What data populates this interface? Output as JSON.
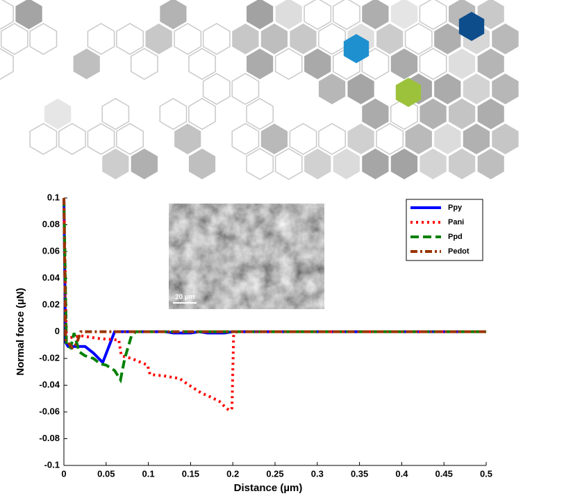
{
  "chart_data": {
    "type": "line",
    "xlabel": "Distance (µm)",
    "ylabel": "Normal force (µN)",
    "inset_scale_label": "20 µm",
    "xlim": [
      0,
      0.5
    ],
    "ylim": [
      -0.1,
      0.1
    ],
    "xticks": [
      0,
      0.05,
      0.1,
      0.15,
      0.2,
      0.25,
      0.3,
      0.35,
      0.4,
      0.45,
      0.5
    ],
    "yticks": [
      0.1,
      0.08,
      0.06,
      0.04,
      0.02,
      0,
      -0.02,
      -0.04,
      -0.06,
      -0.08,
      -0.1
    ],
    "legend": "upper right",
    "series": [
      {
        "name": "Ppy",
        "color": "#0000ff",
        "linestyle": "solid",
        "x": [
          0,
          0.002,
          0.005,
          0.025,
          0.035,
          0.046,
          0.06,
          0.12,
          0.13,
          0.15,
          0.16,
          0.17,
          0.19,
          0.2,
          0.5
        ],
        "values": [
          0.1,
          -0.008,
          -0.011,
          -0.011,
          -0.016,
          -0.023,
          0,
          0,
          -0.001,
          -0.001,
          0,
          -0.001,
          -0.001,
          0,
          0
        ]
      },
      {
        "name": "Pani",
        "color": "#ff0000",
        "linestyle": "dotted",
        "x": [
          0,
          0.003,
          0.02,
          0.04,
          0.06,
          0.065,
          0.068,
          0.08,
          0.099,
          0.102,
          0.118,
          0.137,
          0.146,
          0.163,
          0.171,
          0.184,
          0.192,
          0.196,
          0.199,
          0.201,
          0.205,
          0.5
        ],
        "values": [
          0.1,
          -0.005,
          -0.003,
          -0.005,
          -0.006,
          -0.006,
          -0.018,
          -0.02,
          -0.025,
          -0.032,
          -0.033,
          -0.035,
          -0.039,
          -0.046,
          -0.048,
          -0.052,
          -0.057,
          -0.059,
          -0.057,
          -0.002,
          0,
          0
        ]
      },
      {
        "name": "Ppd",
        "color": "#008000",
        "linestyle": "dashed",
        "x": [
          0,
          0.003,
          0.008,
          0.012,
          0.018,
          0.025,
          0.035,
          0.043,
          0.05,
          0.06,
          0.067,
          0.072,
          0.08,
          0.085,
          0.5
        ],
        "values": [
          0.1,
          -0.01,
          -0.012,
          -0.001,
          -0.015,
          -0.018,
          -0.02,
          -0.024,
          -0.025,
          -0.029,
          -0.036,
          -0.02,
          -0.003,
          0,
          0
        ]
      },
      {
        "name": "Pedot",
        "color": "#993300",
        "linestyle": "dashdot",
        "x": [
          0,
          0.002,
          0.01,
          0.015,
          0.02,
          0.5
        ],
        "values": [
          0.1,
          -0.006,
          -0.012,
          -0.009,
          0,
          0
        ]
      }
    ]
  }
}
